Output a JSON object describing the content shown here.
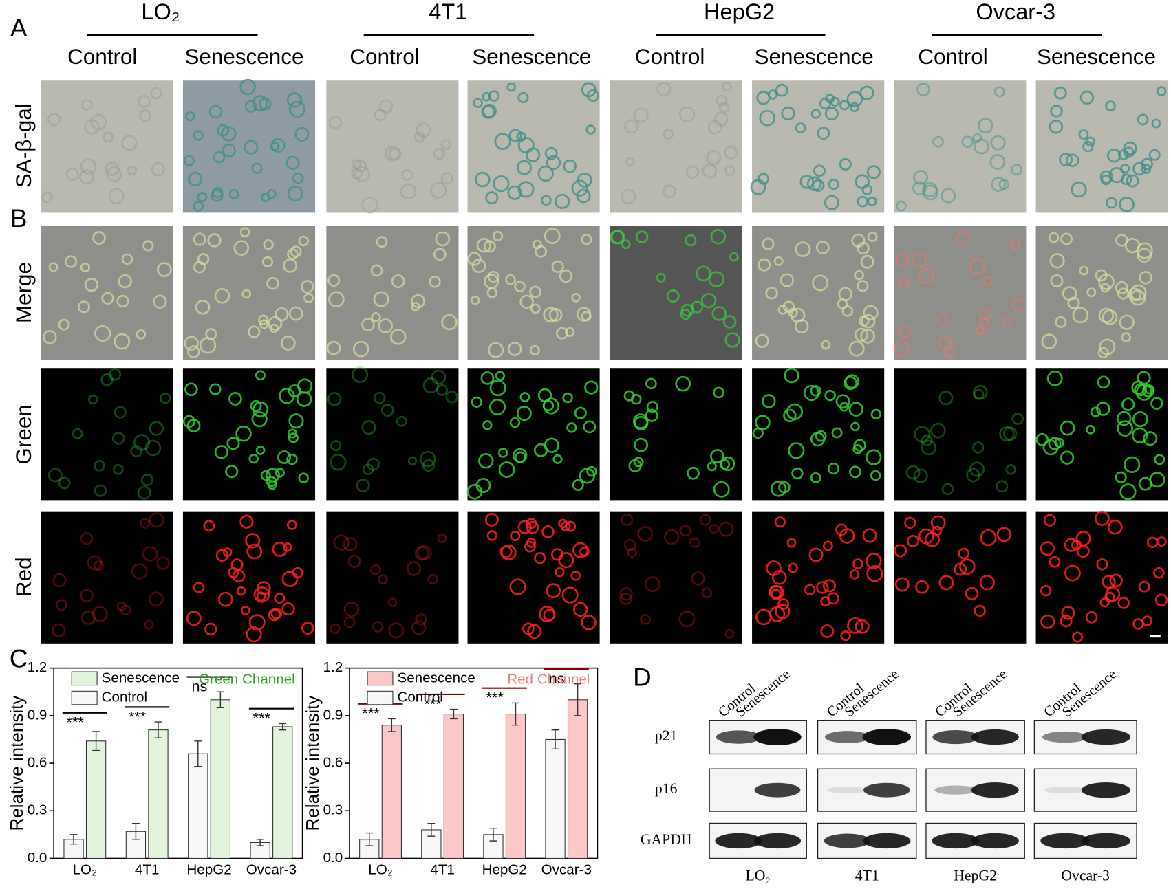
{
  "panel_labels": [
    "A",
    "B",
    "C",
    "D"
  ],
  "cell_lines": [
    "LO₂",
    "4T1",
    "HepG2",
    "Ovcar-3"
  ],
  "conditions": [
    "Control",
    "Senescence"
  ],
  "image_rows": [
    "SA-β-gal",
    "Merge",
    "Green",
    "Red"
  ],
  "chart_data": [
    {
      "type": "bar",
      "annotation": "Green Channel",
      "annotation_color": "#2ca02c",
      "ylabel": "Relative intensity",
      "categories": [
        "LO₂",
        "4T1",
        "HepG2",
        "Ovcar-3"
      ],
      "series": [
        {
          "name": "Senescence",
          "color": "#e3f4dc",
          "values": [
            0.74,
            0.81,
            1.0,
            0.83
          ],
          "errors": [
            0.06,
            0.05,
            0.05,
            0.02
          ]
        },
        {
          "name": "Control",
          "color": "#f7f7f7",
          "values": [
            0.12,
            0.17,
            0.66,
            0.1
          ],
          "errors": [
            0.03,
            0.05,
            0.08,
            0.02
          ]
        }
      ],
      "significance": [
        "***",
        "***",
        "ns",
        "***"
      ],
      "ylim": [
        0,
        1.2
      ],
      "yticks": [
        {
          "value": 0,
          "label": "0.0"
        },
        0.3,
        0.6,
        0.9,
        1.2
      ]
    },
    {
      "type": "bar",
      "annotation": "Red Channel",
      "annotation_color": "#f08080",
      "ylabel": "Relative intensity",
      "categories": [
        "LO₂",
        "4T1",
        "HepG2",
        "Ovcar-3"
      ],
      "series": [
        {
          "name": "Senescence",
          "color": "#fbc8c8",
          "values": [
            0.84,
            0.91,
            0.91,
            1.0
          ],
          "errors": [
            0.04,
            0.03,
            0.07,
            0.1
          ]
        },
        {
          "name": "Control",
          "color": "#f7f7f7",
          "values": [
            0.12,
            0.18,
            0.15,
            0.75
          ],
          "errors": [
            0.04,
            0.04,
            0.04,
            0.06
          ]
        }
      ],
      "significance": [
        "***",
        "***",
        "***",
        "ns"
      ],
      "ylim": [
        0,
        1.2
      ],
      "yticks": [
        {
          "value": 0,
          "label": "0.0"
        },
        0.3,
        0.6,
        0.9,
        1.2
      ]
    }
  ],
  "western_blot": {
    "proteins": [
      "p21",
      "p16",
      "GAPDH"
    ],
    "lanes": [
      "Control",
      "Senescence"
    ],
    "cell_lines": [
      "LO₂",
      "4T1",
      "HepG2",
      "Ovcar-3"
    ]
  }
}
